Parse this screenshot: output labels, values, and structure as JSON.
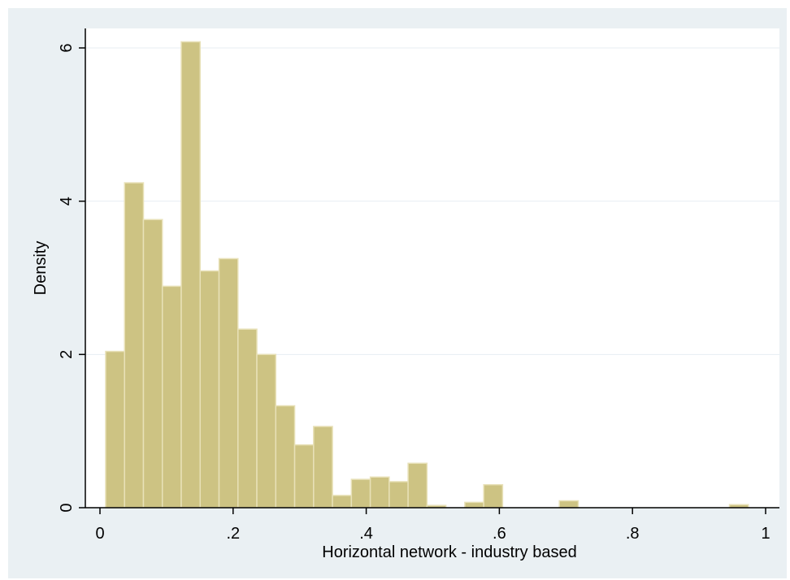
{
  "chart_data": {
    "type": "bar",
    "xlabel": "Horizontal network - industry based",
    "ylabel": "Density",
    "xlim": [
      0,
      1
    ],
    "ylim": [
      0,
      6
    ],
    "x_ticks": [
      0,
      0.2,
      0.4,
      0.6,
      0.8,
      1
    ],
    "x_tick_labels": [
      "0",
      ".2",
      ".4",
      ".6",
      ".8",
      "1"
    ],
    "y_ticks": [
      0,
      2,
      4,
      6
    ],
    "y_tick_labels": [
      "0",
      "2",
      "4",
      "6"
    ],
    "grid": "horizontal",
    "bin_width": 0.0284,
    "bin_start": 0.0085,
    "values": [
      2.04,
      4.24,
      3.76,
      2.89,
      6.08,
      3.09,
      3.25,
      2.33,
      2.0,
      1.33,
      0.82,
      1.06,
      0.16,
      0.37,
      0.4,
      0.34,
      0.58,
      0.03,
      0.0,
      0.07,
      0.3,
      0.0,
      0.0,
      0.0,
      0.09,
      0.0,
      0.0,
      0.0,
      0.0,
      0.0,
      0.0,
      0.0,
      0.0,
      0.04
    ],
    "colors": {
      "bar_fill": "#cdc383",
      "bar_stroke": "#e8e1b8",
      "plot_background": "#ffffff",
      "outer_background": "#eaf0f3",
      "grid": "#e7eef2"
    }
  }
}
